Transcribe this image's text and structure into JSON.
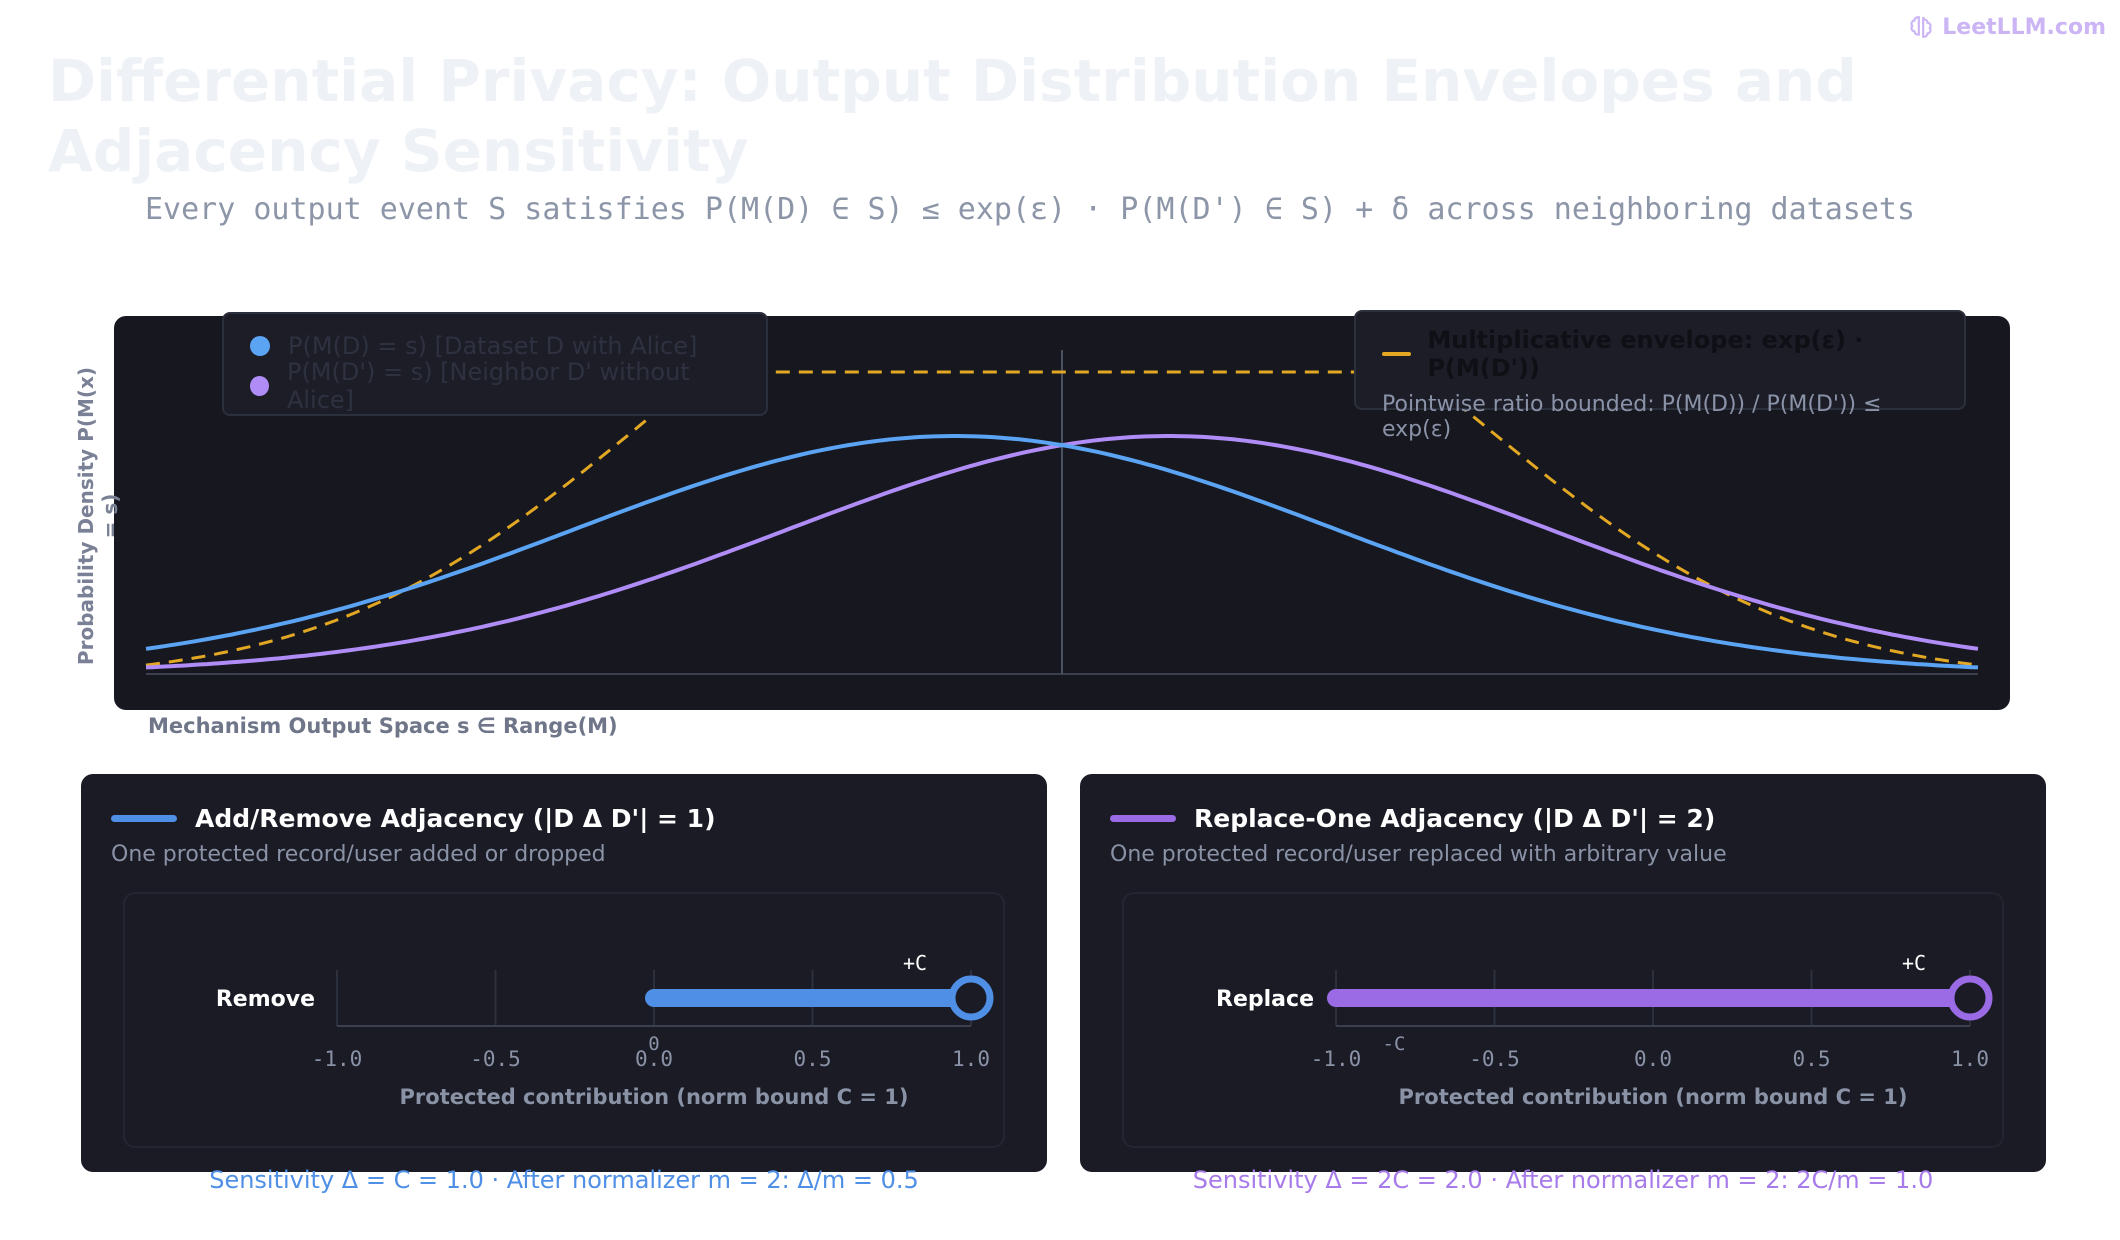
{
  "brand": {
    "name": "LeetLLM.com",
    "icon": "brain-icon"
  },
  "title": "Differential Privacy: Output Distribution Envelopes and Adjacency Sensitivity",
  "subtitle": "Every output event S satisfies P(M(D) ∈ S) ≤ exp(ε) · P(M(D') ∈ S) + δ across neighboring datasets",
  "colors": {
    "dataset_d": "#5ba3f3",
    "dataset_d_prime": "#b08cf6",
    "envelope": "#e3a823",
    "add_remove": "#4f8fe6",
    "replace_one": "#9a6be5"
  },
  "chart_data": {
    "type": "line",
    "xlabel": "Mechanism Output Space s ∈ Range(M)",
    "ylabel": "Probability Density P(M(x) = s)",
    "series": [
      {
        "name": "P(M(D) = s) [Dataset D with Alice]",
        "mean": -0.35,
        "sd": 1.25,
        "style": "solid"
      },
      {
        "name": "P(M(D') = s) [Neighbor D' without Alice]",
        "mean": 0.35,
        "sd": 1.25,
        "style": "solid"
      },
      {
        "name": "Multiplicative envelope: exp(ε) · P(M(D'))",
        "style": "dashed"
      }
    ],
    "xlim": [
      -3,
      3
    ],
    "center_line": 0,
    "envelope_note": "Pointwise ratio bounded: P(M(D)) / P(M(D')) ≤ exp(ε)"
  },
  "legend": {
    "items": [
      {
        "label": "P(M(D) = s) [Dataset D with Alice]"
      },
      {
        "label": "P(M(D') = s) [Neighbor D' without Alice]"
      }
    ]
  },
  "envelope_box": {
    "title": "Multiplicative envelope: exp(ε) · P(M(D'))",
    "subtitle": "Pointwise ratio bounded: P(M(D)) / P(M(D')) ≤ exp(ε)"
  },
  "cards": {
    "add_remove": {
      "title": "Add/Remove Adjacency (|D Δ D'| = 1)",
      "subtitle": "One protected record/user added or dropped",
      "row_label": "Remove",
      "ticks": [
        "-1.0",
        "-0.5",
        "0.0",
        "0.5",
        "1.0"
      ],
      "range": [
        0,
        1
      ],
      "start_marker": "0",
      "end_marker": "+C",
      "axis_label": "Protected contribution (norm bound C = 1)",
      "footer": "Sensitivity Δ = C = 1.0 · After normalizer m = 2: Δ/m = 0.5"
    },
    "replace_one": {
      "title": "Replace-One Adjacency (|D Δ D'| = 2)",
      "subtitle": "One protected record/user replaced with arbitrary value",
      "row_label": "Replace",
      "ticks": [
        "-1.0",
        "-0.5",
        "0.0",
        "0.5",
        "1.0"
      ],
      "range": [
        -1,
        1
      ],
      "start_marker": "-C",
      "end_marker": "+C",
      "axis_label": "Protected contribution (norm bound C = 1)",
      "footer": "Sensitivity Δ = 2C = 2.0 · After normalizer m = 2: 2C/m = 1.0"
    }
  }
}
